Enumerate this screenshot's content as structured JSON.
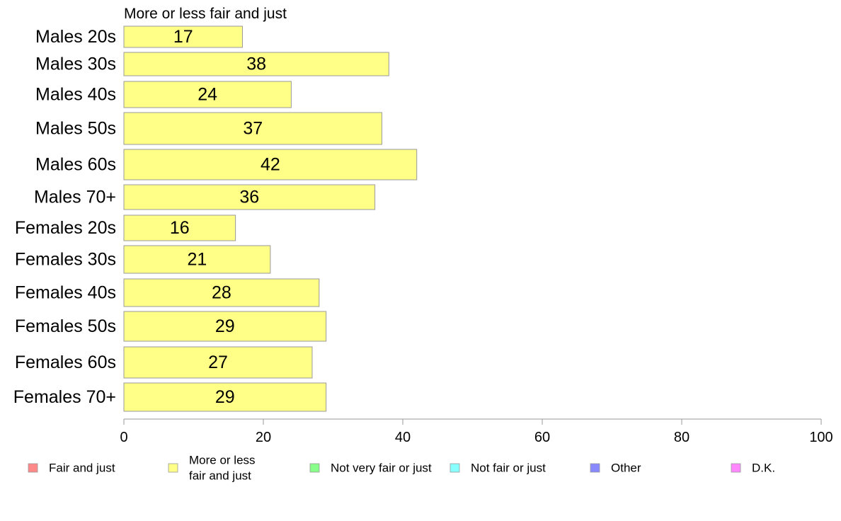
{
  "chart_data": {
    "type": "bar",
    "orientation": "horizontal",
    "title": "More or less fair and just",
    "categories": [
      "Males 20s",
      "Males 30s",
      "Males 40s",
      "Males 50s",
      "Males 60s",
      "Males 70+",
      "Females 20s",
      "Females 30s",
      "Females 40s",
      "Females 50s",
      "Females 60s",
      "Females 70+"
    ],
    "series": [
      {
        "name": "More or less fair and just",
        "color": "#ffff88",
        "values": [
          17,
          38,
          24,
          37,
          42,
          36,
          16,
          21,
          28,
          29,
          27,
          29
        ]
      }
    ],
    "xlim": [
      0,
      100
    ],
    "xticks": [
      0,
      20,
      40,
      60,
      80,
      100
    ],
    "grid": false,
    "legend_placement": "bottom",
    "legend": [
      {
        "label": "Fair and just",
        "color": "#ff8888"
      },
      {
        "label": "More or less\nfair and just",
        "color": "#ffff88"
      },
      {
        "label": "Not very fair or just",
        "color": "#88ff88"
      },
      {
        "label": "Not fair or just",
        "color": "#88ffff"
      },
      {
        "label": "Other",
        "color": "#8888ff"
      },
      {
        "label": "D.K.",
        "color": "#ff88ff"
      }
    ],
    "colors": {
      "bar_stroke": "#999999",
      "axis": "#999999",
      "text": "#000000"
    }
  }
}
